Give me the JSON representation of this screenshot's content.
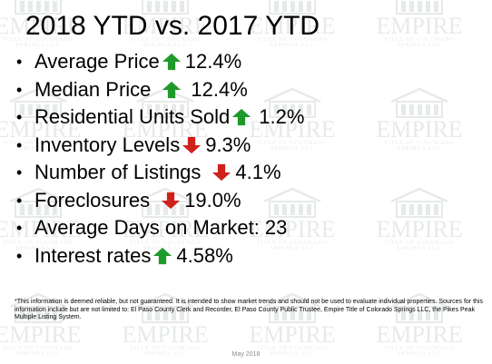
{
  "title": "2018 YTD vs. 2017 YTD",
  "items": [
    {
      "label": "Average Price",
      "trend": "up",
      "value": "12.4%"
    },
    {
      "label": "Median Price",
      "trend": "up",
      "value": "12.4%"
    },
    {
      "label": "Residential Units Sold",
      "trend": "up",
      "value": "1.2%"
    },
    {
      "label": "Inventory Levels",
      "trend": "down",
      "value": "9.3%"
    },
    {
      "label": "Number of Listings",
      "trend": "down",
      "value": "4.1%"
    },
    {
      "label": "Foreclosures",
      "trend": "down",
      "value": "19.0%"
    },
    {
      "label": "Average Days on Market: 23",
      "trend": "none",
      "value": ""
    },
    {
      "label": "Interest rates",
      "trend": "up",
      "value": "4.58%"
    }
  ],
  "disclaimer": "*This information is deemed reliable, but not guaranteed.  It is intended to show market trends and should not be used to evaluate individual properties.  Sources for this information include but are not limited to: El Paso County Clerk and Recorder, El Paso County Public Trustee, Empire Title of Colorado Springs LLC, the Pikes Peak Multiple Listing System.",
  "footer": "May 2018",
  "watermark": {
    "name": "EMPIRE",
    "subtitle": "TITLE OF COLORADO SPRINGS LLC"
  },
  "colors": {
    "up_arrow": "#1f9a2a",
    "down_arrow": "#d0201c",
    "watermark": "#6b7f7a"
  },
  "icons": {
    "up": "green-up-arrow-icon",
    "down": "red-down-arrow-icon"
  }
}
